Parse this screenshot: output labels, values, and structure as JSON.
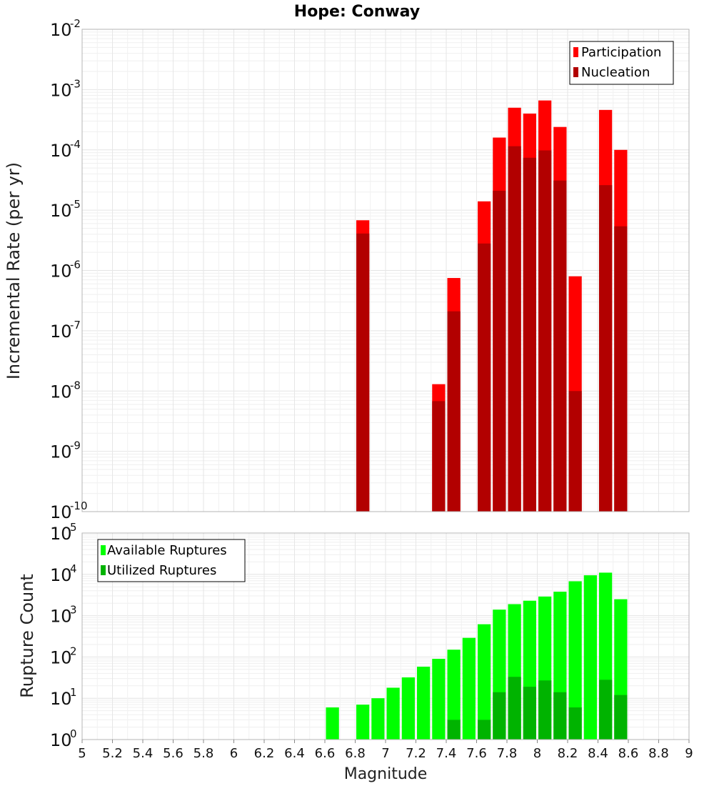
{
  "chart_data": [
    {
      "type": "bar",
      "title": "Hope: Conway",
      "ylabel": "Incremental Rate (per yr)",
      "xlabel": "",
      "yscale": "log",
      "ylim_exp": [
        -10,
        -2
      ],
      "xlim": [
        5,
        9
      ],
      "bar_width": 0.1,
      "grid": true,
      "legend_position": "top-right",
      "x": [
        6.85,
        7.35,
        7.45,
        7.65,
        7.75,
        7.85,
        7.95,
        8.05,
        8.15,
        8.25,
        8.45,
        8.55
      ],
      "series": [
        {
          "name": "Participation",
          "color": "#ff0000",
          "values": [
            6.8e-06,
            1.3e-08,
            7.5e-07,
            1.4e-05,
            0.00016,
            0.0005,
            0.0004,
            0.00066,
            0.00024,
            8e-07,
            0.00046,
            0.0001
          ]
        },
        {
          "name": "Nucleation",
          "color": "#b20000",
          "values": [
            4.1e-06,
            6.8e-09,
            2.1e-07,
            2.8e-06,
            2.1e-05,
            0.000115,
            7.4e-05,
            9.8e-05,
            3.1e-05,
            1e-08,
            2.6e-05,
            5.4e-06
          ]
        }
      ]
    },
    {
      "type": "bar",
      "title": "",
      "ylabel": "Rupture Count",
      "xlabel": "Magnitude",
      "yscale": "log",
      "ylim_exp": [
        0,
        5
      ],
      "xlim": [
        5,
        9
      ],
      "bar_width": 0.1,
      "grid": true,
      "legend_position": "top-left",
      "x": [
        6.65,
        6.85,
        6.95,
        7.05,
        7.15,
        7.25,
        7.35,
        7.45,
        7.55,
        7.65,
        7.75,
        7.85,
        7.95,
        8.05,
        8.15,
        8.25,
        8.35,
        8.45,
        8.55
      ],
      "series": [
        {
          "name": "Available Ruptures",
          "color": "#00ff00",
          "values": [
            6,
            7,
            10,
            18,
            32,
            58,
            90,
            150,
            290,
            620,
            1400,
            1900,
            2300,
            2900,
            3800,
            6800,
            9500,
            11000,
            2500
          ]
        },
        {
          "name": "Utilized Ruptures",
          "color": "#00b300",
          "values": [
            0,
            1,
            0,
            0,
            0,
            0,
            1,
            3,
            0,
            3,
            14,
            33,
            19,
            27,
            14,
            6,
            0,
            28,
            12
          ]
        }
      ],
      "xticks": [
        "5",
        "5.2",
        "5.4",
        "5.6",
        "5.8",
        "6",
        "6.2",
        "6.4",
        "6.6",
        "6.8",
        "7",
        "7.2",
        "7.4",
        "7.6",
        "7.8",
        "8",
        "8.2",
        "8.4",
        "8.6",
        "8.8",
        "9"
      ]
    }
  ]
}
